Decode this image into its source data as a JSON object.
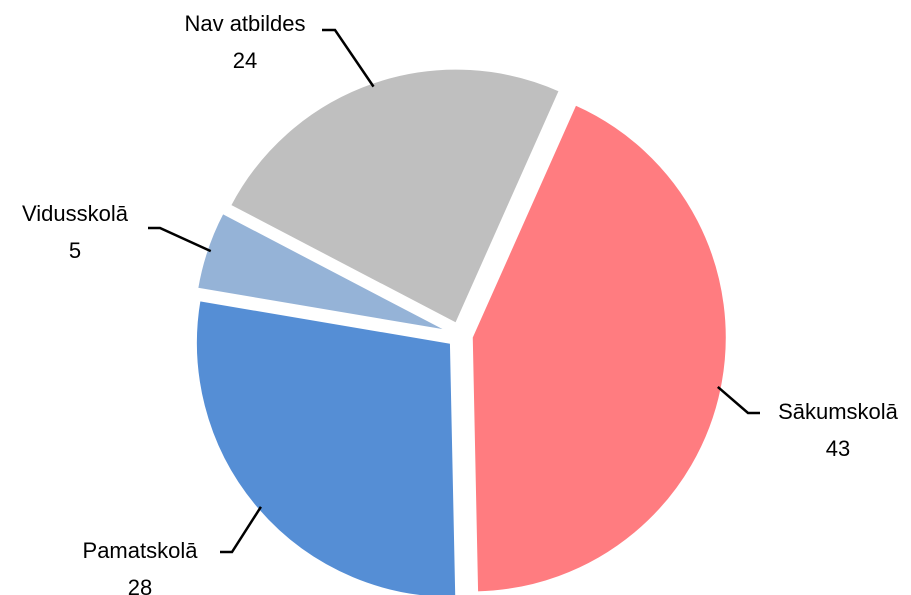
{
  "chart_data": {
    "type": "pie",
    "categories": [
      "Sākumskolā",
      "Pamatskolā",
      "Vidusskolā",
      "Nav atbildes"
    ],
    "values": [
      43,
      28,
      5,
      24
    ],
    "colors": [
      "#ff7c80",
      "#558ed5",
      "#95b3d7",
      "#bfbfbf"
    ]
  }
}
